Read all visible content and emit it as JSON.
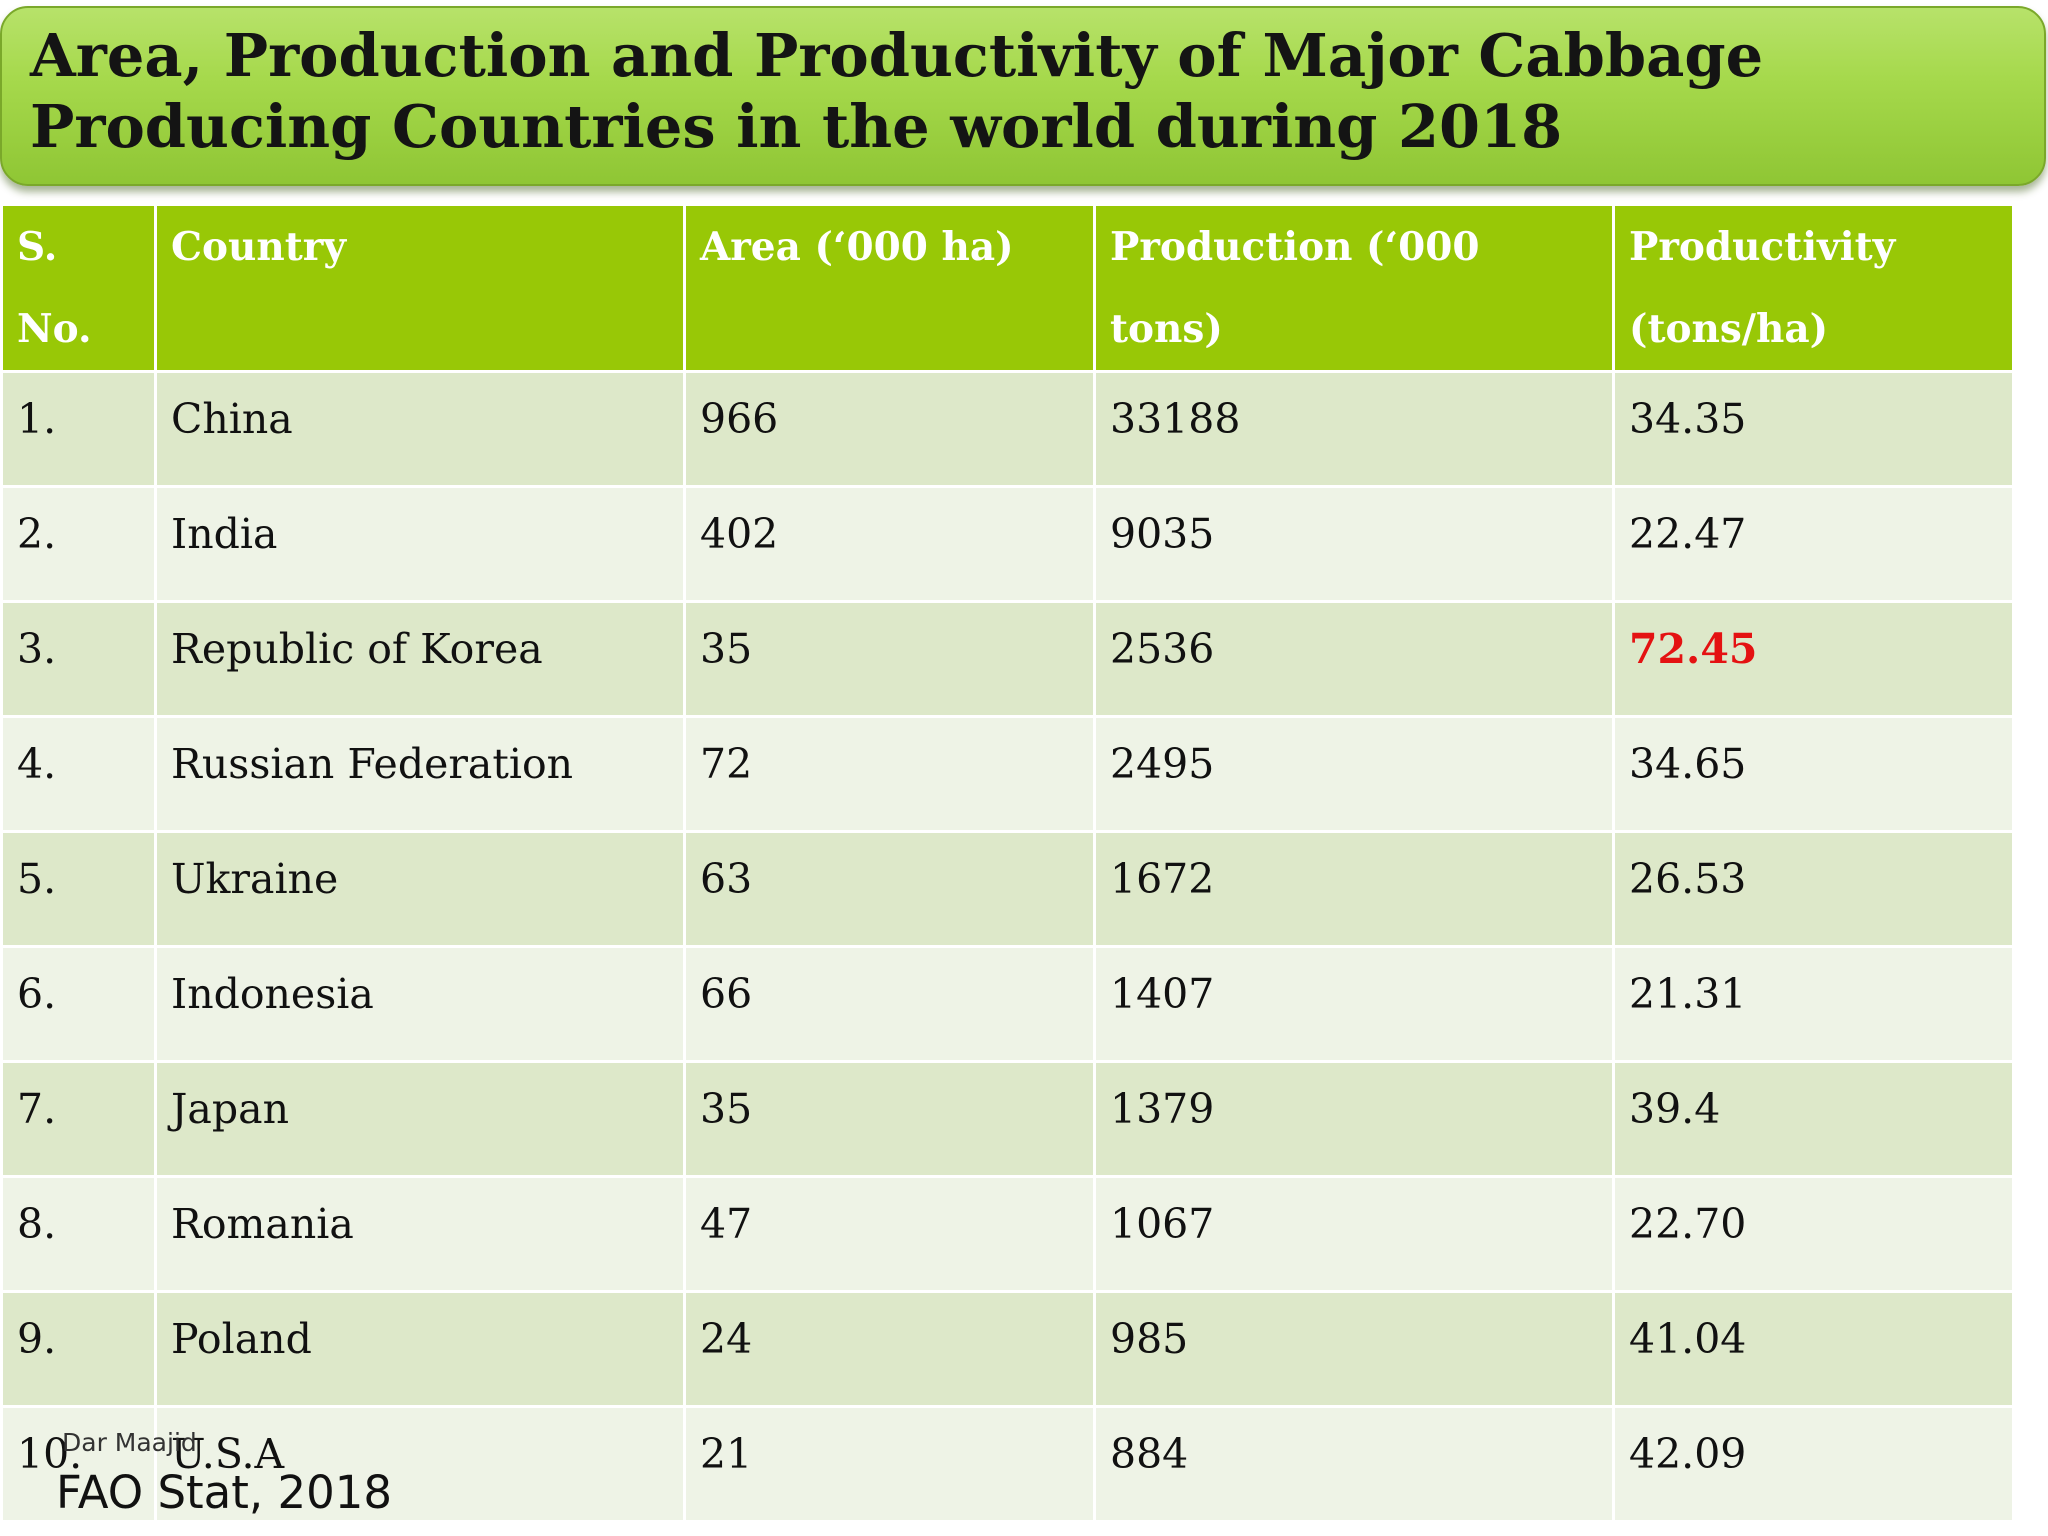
{
  "title": "Area, Production and Productivity of Major Cabbage Producing Countries in the world during 2018",
  "table": {
    "headers": [
      "S. No.",
      "Country",
      "Area (‘000 ha)",
      "Production (‘000 tons)",
      "Productivity (tons/ha)"
    ],
    "rows": [
      [
        "1.",
        "China",
        "966",
        "33188",
        "34.35"
      ],
      [
        "2.",
        "India",
        "402",
        "9035",
        "22.47"
      ],
      [
        "3.",
        "Republic of Korea",
        "35",
        "2536",
        "72.45"
      ],
      [
        "4.",
        "Russian Federation",
        "72",
        "2495",
        "34.65"
      ],
      [
        "5.",
        "Ukraine",
        "63",
        "1672",
        "26.53"
      ],
      [
        "6.",
        "Indonesia",
        "66",
        "1407",
        "21.31"
      ],
      [
        "7.",
        "Japan",
        "35",
        "1379",
        "39.4"
      ],
      [
        "8.",
        "Romania",
        "47",
        "1067",
        "22.70"
      ],
      [
        "9.",
        "Poland",
        "24",
        "985",
        "41.04"
      ],
      [
        "10.",
        "U.S.A",
        "21",
        "884",
        "42.09"
      ]
    ],
    "highlighted_value": "72.45",
    "highlight_color": "#e41212"
  },
  "watermark": "Dar Maajid",
  "source": "FAO Stat, 2018",
  "colors": {
    "banner_green": "#a6d94c",
    "header_green": "#98c806",
    "row_light": "#eef3e6",
    "row_dark": "#dde8c9"
  }
}
